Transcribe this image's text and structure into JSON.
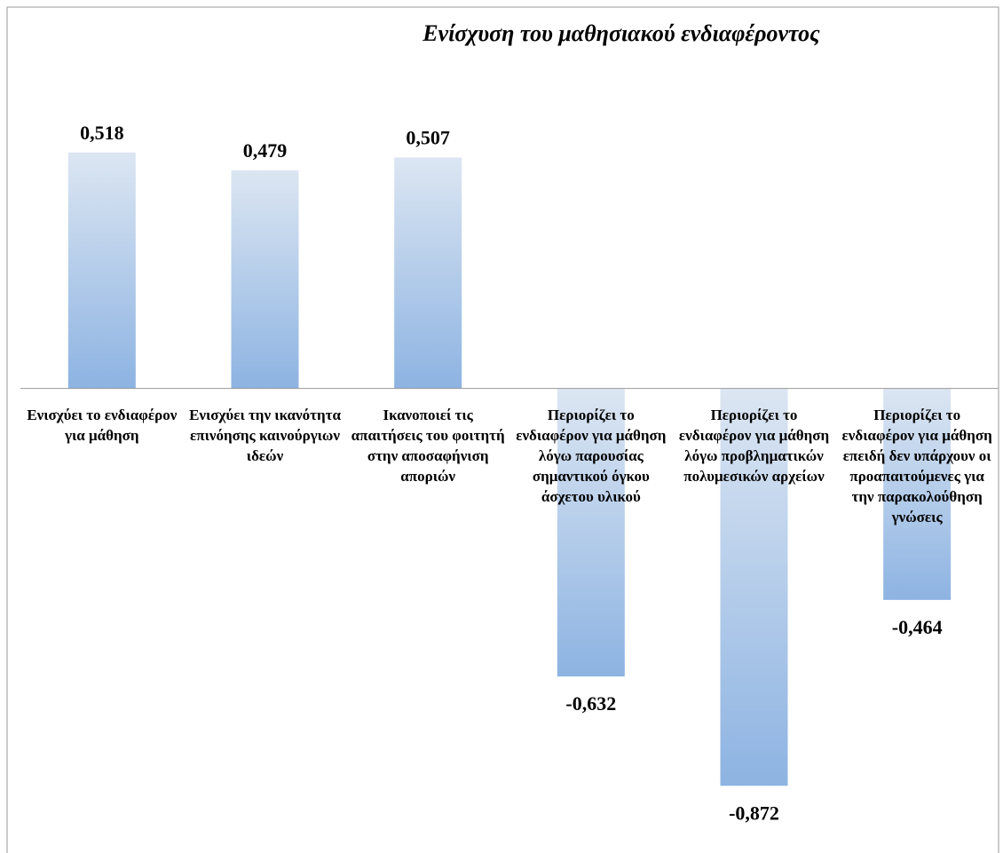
{
  "chart_data": {
    "type": "bar",
    "title": "Ενίσχυση του μαθησιακού ενδιαφέροντος",
    "categories": [
      "Ενισχύει το ενδιαφέρον για μάθηση",
      "Ενισχύει την ικανότητα επινόησης καινούργιων ιδεών",
      "Ικανοποιεί τις απαιτήσεις του φοιτητή στην αποσαφήνιση αποριών",
      "Περιορίζει το ενδιαφέρον για μάθηση λόγω παρουσίας σημαντικού όγκου άσχετου υλικού",
      "Περιορίζει το ενδιαφέρον για μάθηση λόγω προβληματικών πολυμεσικών αρχείων",
      "Περιορίζει το ενδιαφέρον για μάθηση επειδή δεν υπάρχουν οι προαπαιτούμενες για την παρακολούθηση γνώσεις"
    ],
    "values": [
      0.518,
      0.479,
      0.507,
      -0.632,
      -0.872,
      -0.464
    ],
    "value_labels": [
      "0,518",
      "0,479",
      "0,507",
      "-0,632",
      "-0,872",
      "-0,464"
    ],
    "color": [
      "#dce6f2",
      "#8db3e2"
    ],
    "ylim": [
      -1,
      0.8
    ]
  }
}
